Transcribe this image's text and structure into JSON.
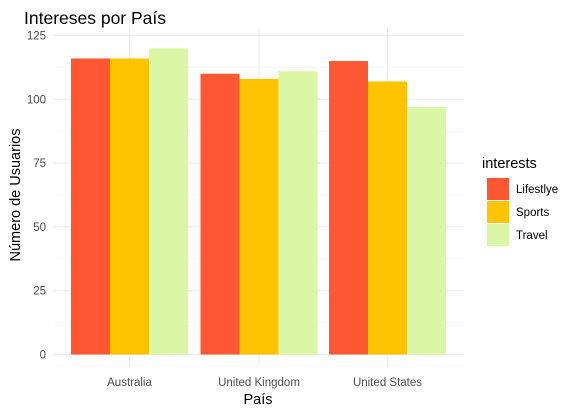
{
  "chart_data": {
    "type": "bar",
    "title": "Intereses por País",
    "xlabel": "País",
    "ylabel": "Número de Usuarios",
    "categories": [
      "Australia",
      "United Kingdom",
      "United States"
    ],
    "series": [
      {
        "name": "Lifestlye",
        "color": "#ff5733",
        "values": [
          116,
          110,
          115
        ]
      },
      {
        "name": "Sports",
        "color": "#ffc300",
        "values": [
          116,
          108,
          107
        ]
      },
      {
        "name": "Travel",
        "color": "#daf7a6",
        "values": [
          120,
          111,
          97
        ]
      }
    ],
    "ylim": [
      0,
      125
    ],
    "yticks": [
      "0",
      "25",
      "50",
      "75",
      "100",
      "125"
    ],
    "legend_title": "interests",
    "legend_position": "right",
    "grid": true
  }
}
